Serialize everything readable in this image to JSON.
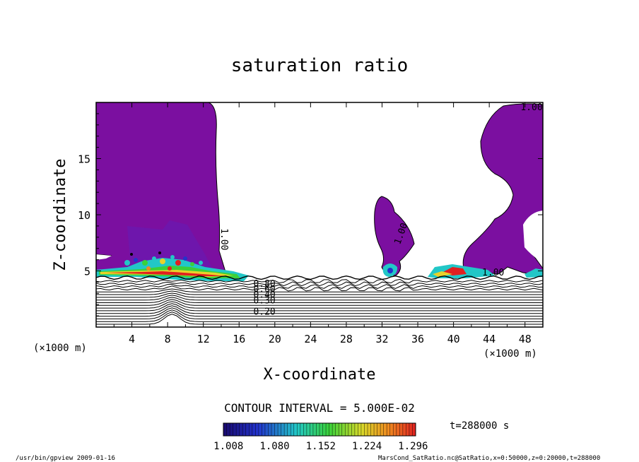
{
  "chart_data": {
    "type": "heatmap",
    "title": "saturation ratio",
    "xlabel": "X-coordinate",
    "ylabel": "Z-coordinate",
    "x_unit": "(×1000 m)",
    "y_unit": "(×1000 m)",
    "xlim": [
      0,
      50
    ],
    "ylim": [
      0,
      20
    ],
    "x_ticks": [
      4,
      8,
      12,
      16,
      20,
      24,
      28,
      32,
      36,
      40,
      44,
      48
    ],
    "y_ticks": [
      5,
      10,
      15
    ],
    "contour_interval_label": "CONTOUR INTERVAL = 5.000E-02",
    "contour_labels": [
      {
        "text": "1.00",
        "x": 14.0,
        "z": 8.8
      },
      {
        "text": "1.00",
        "x": 34.0,
        "z": 7.3
      },
      {
        "text": "1.00",
        "x": 47.5,
        "z": 19.3
      },
      {
        "text": "1.00",
        "x": 43.2,
        "z": 4.6
      },
      {
        "text": "0.80",
        "x": 17.6,
        "z": 3.6
      },
      {
        "text": "0.60",
        "x": 17.6,
        "z": 3.1
      },
      {
        "text": "0.40",
        "x": 17.6,
        "z": 2.6
      },
      {
        "text": "0.30",
        "x": 17.6,
        "z": 2.1
      },
      {
        "text": "0.20",
        "x": 17.6,
        "z": 1.1
      }
    ],
    "colorbar": {
      "ticks": [
        "1.008",
        "1.080",
        "1.152",
        "1.224",
        "1.296"
      ],
      "min": 1.0,
      "max": 1.3
    },
    "time_label": "t=288000 s",
    "colors": {
      "saturated": "#7b0fa0",
      "low": "#1a0a6e",
      "mid": "#22c7c7",
      "high": "#e02020"
    }
  },
  "footer": {
    "left": "/usr/bin/gpview  2009-01-16",
    "right": "MarsCond_SatRatio.nc@SatRatio,x=0:50000,z=0:20000,t=288000"
  }
}
